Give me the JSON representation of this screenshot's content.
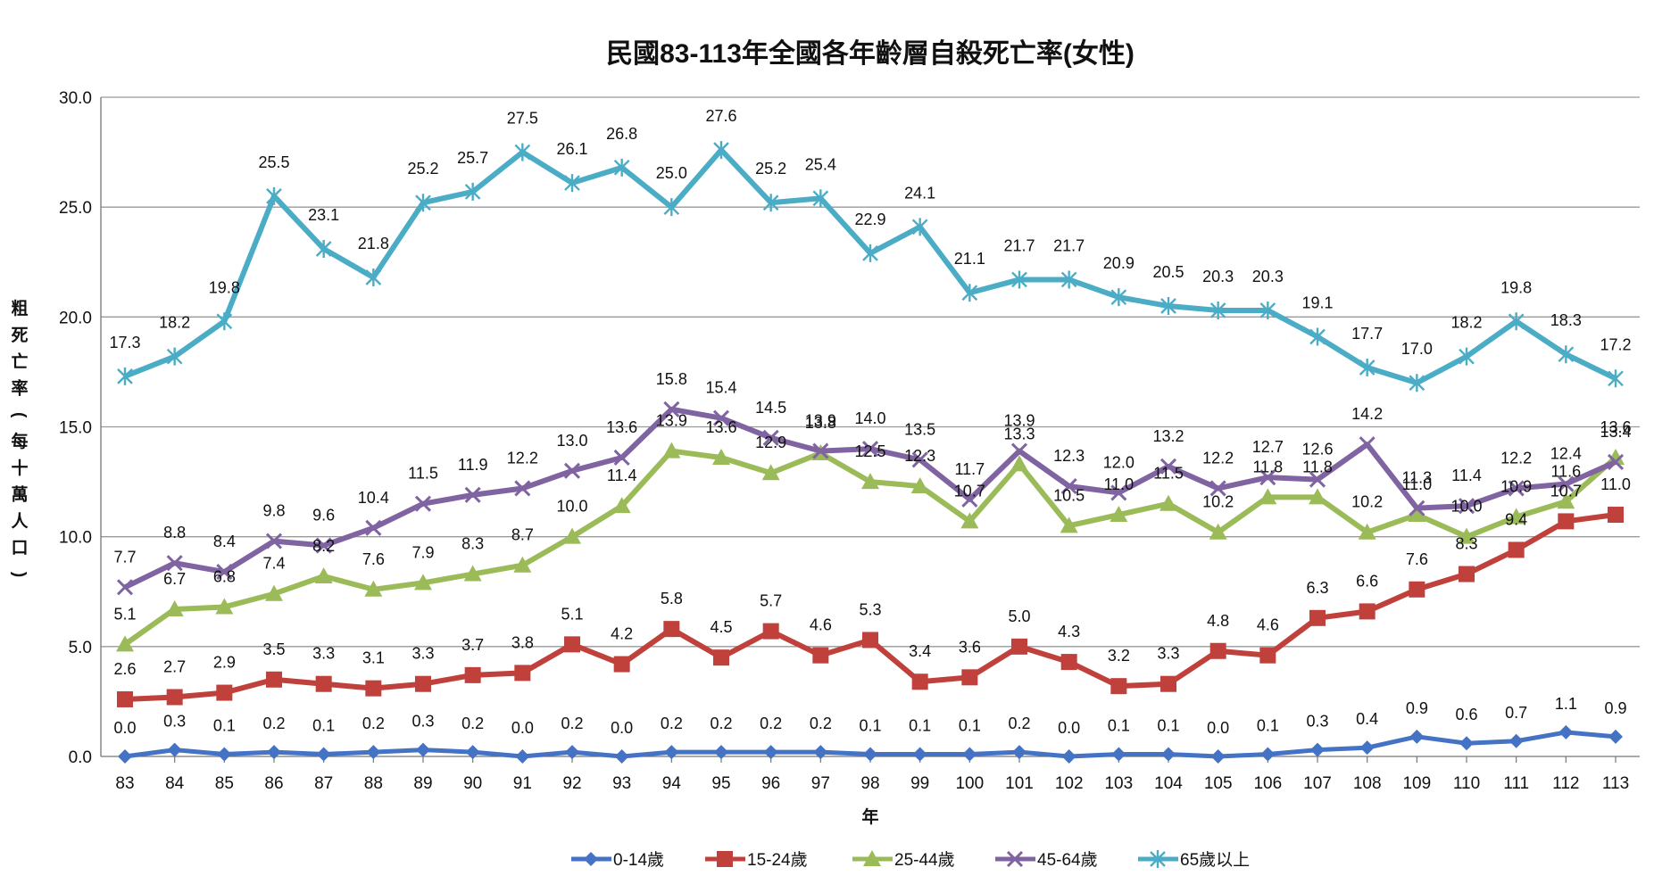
{
  "chart_data": {
    "type": "line",
    "title": "民國83-113年全國各年齡層自殺死亡率(女性)",
    "xlabel": "年",
    "ylabel": "粗死亡率(每十萬人口)",
    "ylim": [
      0,
      30
    ],
    "yticks": [
      "0.0",
      "5.0",
      "10.0",
      "15.0",
      "20.0",
      "25.0",
      "30.0"
    ],
    "grid": true,
    "legend_position": "bottom",
    "categories": [
      "83",
      "84",
      "85",
      "86",
      "87",
      "88",
      "89",
      "90",
      "91",
      "92",
      "93",
      "94",
      "95",
      "96",
      "97",
      "98",
      "99",
      "100",
      "101",
      "102",
      "103",
      "104",
      "105",
      "106",
      "107",
      "108",
      "109",
      "110",
      "111",
      "112",
      "113"
    ],
    "series": [
      {
        "name": "0-14歲",
        "color": "#4472C4",
        "marker": "diamond",
        "values": [
          0.0,
          0.3,
          0.1,
          0.2,
          0.1,
          0.2,
          0.3,
          0.2,
          0.0,
          0.2,
          0.0,
          0.2,
          0.2,
          0.2,
          0.2,
          0.1,
          0.1,
          0.1,
          0.2,
          0.0,
          0.1,
          0.1,
          0.0,
          0.1,
          0.3,
          0.4,
          0.9,
          0.6,
          0.7,
          1.1,
          0.9
        ]
      },
      {
        "name": "15-24歲",
        "color": "#C0403B",
        "marker": "square",
        "values": [
          2.6,
          2.7,
          2.9,
          3.5,
          3.3,
          3.1,
          3.3,
          3.7,
          3.8,
          5.1,
          4.2,
          5.8,
          4.5,
          5.7,
          4.6,
          5.3,
          3.4,
          3.6,
          5.0,
          4.3,
          3.2,
          3.3,
          4.8,
          4.6,
          6.3,
          6.6,
          7.6,
          8.3,
          9.4,
          10.7,
          11.0
        ]
      },
      {
        "name": "25-44歲",
        "color": "#9BBB59",
        "marker": "triangle",
        "values": [
          5.1,
          6.7,
          6.8,
          7.4,
          8.2,
          7.6,
          7.9,
          8.3,
          8.7,
          10.0,
          11.4,
          13.9,
          13.6,
          12.9,
          13.8,
          12.5,
          12.3,
          10.7,
          13.3,
          10.5,
          11.0,
          11.5,
          10.2,
          11.8,
          11.8,
          10.2,
          11.0,
          10.0,
          10.9,
          11.6,
          13.6
        ]
      },
      {
        "name": "45-64歲",
        "color": "#8064A2",
        "marker": "x",
        "values": [
          7.7,
          8.8,
          8.4,
          9.8,
          9.6,
          10.4,
          11.5,
          11.9,
          12.2,
          13.0,
          13.6,
          15.8,
          15.4,
          14.5,
          13.9,
          14.0,
          13.5,
          11.7,
          13.9,
          12.3,
          12.0,
          13.2,
          12.2,
          12.7,
          12.6,
          14.2,
          11.3,
          11.4,
          12.2,
          12.4,
          13.4
        ]
      },
      {
        "name": "65歲以上",
        "color": "#4BACC6",
        "marker": "star",
        "values": [
          17.3,
          18.2,
          19.8,
          25.5,
          23.1,
          21.8,
          25.2,
          25.7,
          27.5,
          26.1,
          26.8,
          25.0,
          27.6,
          25.2,
          25.4,
          22.9,
          24.1,
          21.1,
          21.7,
          21.7,
          20.9,
          20.5,
          20.3,
          20.3,
          19.1,
          17.7,
          17.0,
          18.2,
          19.8,
          18.3,
          17.2
        ]
      }
    ]
  }
}
